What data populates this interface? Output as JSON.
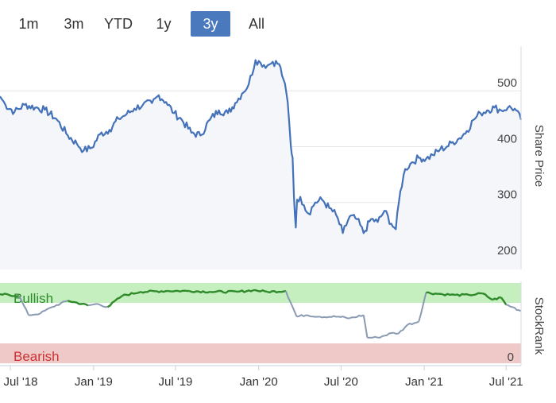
{
  "range_selector": {
    "buttons": [
      {
        "label": "1m",
        "active": false
      },
      {
        "label": "3m",
        "active": false
      },
      {
        "label": "YTD",
        "active": false
      },
      {
        "label": "1y",
        "active": false
      },
      {
        "label": "3y",
        "active": true
      },
      {
        "label": "All",
        "active": false
      }
    ]
  },
  "colors": {
    "price_line": "#4472b9",
    "price_fill": "#f5f6fa",
    "bullish_band": "#c6efc0",
    "bearish_band": "#efc8c8",
    "bullish_text": "#2e8b2e",
    "bearish_text": "#cc3333",
    "rank_green": "#2f8a2a",
    "rank_grey": "#8a9ab2",
    "grid": "#e6e6e6"
  },
  "chart_data": [
    {
      "type": "line",
      "ylabel": "Share Price",
      "ylim": [
        180,
        580
      ],
      "yticks": [
        200,
        300,
        400,
        500
      ],
      "x_range": [
        "2018-06-08",
        "2021-08-03"
      ],
      "xticks": [
        "Jul '18",
        "Jan '19",
        "Jul '19",
        "Jan '20",
        "Jul '20",
        "Jan '21",
        "Jul '21"
      ],
      "grid": true,
      "series": [
        {
          "x": [
            "2018-06-08",
            "2018-06-20",
            "2018-07-10",
            "2018-08-01",
            "2018-08-25",
            "2018-09-15",
            "2018-10-10",
            "2018-11-05",
            "2018-11-25",
            "2018-12-10",
            "2018-12-28",
            "2019-01-15",
            "2019-02-05",
            "2019-02-25",
            "2019-03-15",
            "2019-04-01",
            "2019-04-20",
            "2019-05-10",
            "2019-05-25",
            "2019-06-10",
            "2019-06-28",
            "2019-07-15",
            "2019-08-05",
            "2019-08-25",
            "2019-09-15",
            "2019-10-05",
            "2019-10-25",
            "2019-11-10",
            "2019-11-25",
            "2019-12-10",
            "2019-12-25",
            "2020-01-05",
            "2020-01-20",
            "2020-02-01",
            "2020-02-15",
            "2020-02-25",
            "2020-03-05",
            "2020-03-12",
            "2020-03-16",
            "2020-03-19",
            "2020-03-23",
            "2020-03-26",
            "2020-04-02",
            "2020-04-10",
            "2020-04-20",
            "2020-05-05",
            "2020-05-20",
            "2020-06-05",
            "2020-06-20",
            "2020-07-05",
            "2020-07-20",
            "2020-08-05",
            "2020-08-20",
            "2020-09-05",
            "2020-09-20",
            "2020-10-05",
            "2020-10-20",
            "2020-10-30",
            "2020-11-09",
            "2020-11-20",
            "2020-12-05",
            "2020-12-20",
            "2021-01-05",
            "2021-01-20",
            "2021-02-05",
            "2021-02-20",
            "2021-03-05",
            "2021-03-20",
            "2021-04-05",
            "2021-04-20",
            "2021-05-05",
            "2021-05-20",
            "2021-06-05",
            "2021-06-20",
            "2021-07-05",
            "2021-07-20",
            "2021-08-03"
          ],
          "y": [
            490,
            475,
            462,
            475,
            470,
            466,
            450,
            420,
            405,
            393,
            398,
            422,
            430,
            450,
            458,
            468,
            475,
            478,
            492,
            480,
            460,
            448,
            425,
            420,
            448,
            465,
            460,
            478,
            495,
            512,
            555,
            550,
            545,
            552,
            548,
            520,
            480,
            400,
            380,
            310,
            255,
            305,
            310,
            295,
            280,
            300,
            305,
            290,
            278,
            245,
            275,
            270,
            245,
            270,
            265,
            285,
            262,
            252,
            320,
            360,
            372,
            380,
            378,
            385,
            395,
            400,
            408,
            415,
            428,
            448,
            460,
            465,
            470,
            465,
            470,
            468,
            448
          ]
        }
      ]
    },
    {
      "type": "line",
      "ylabel": "StockRank",
      "ylim": [
        0,
        100
      ],
      "band_labels": [
        "Bullish",
        "Bearish"
      ],
      "zero_label": "0",
      "series": [
        {
          "x": [
            "2018-06-08",
            "2018-07-20",
            "2018-08-10",
            "2018-09-05",
            "2018-10-01",
            "2018-11-05",
            "2018-12-20",
            "2019-01-10",
            "2019-02-01",
            "2019-03-05",
            "2019-04-15",
            "2019-06-15",
            "2019-08-01",
            "2019-09-15",
            "2019-11-15",
            "2019-12-20",
            "2020-01-20",
            "2020-03-01",
            "2020-03-25",
            "2020-04-15",
            "2020-05-15",
            "2020-06-25",
            "2020-07-20",
            "2020-08-20",
            "2020-08-28",
            "2020-09-20",
            "2020-10-25",
            "2020-11-05",
            "2020-11-25",
            "2020-12-20",
            "2021-01-05",
            "2021-02-10",
            "2021-03-10",
            "2021-04-10",
            "2021-05-10",
            "2021-06-01",
            "2021-06-20",
            "2021-07-01",
            "2021-07-15",
            "2021-08-03"
          ],
          "y": [
            86,
            84,
            60,
            62,
            70,
            78,
            72,
            74,
            70,
            84,
            89,
            90,
            90,
            89,
            89,
            91,
            89,
            90,
            58,
            60,
            58,
            58,
            56,
            60,
            32,
            32,
            38,
            37,
            48,
            52,
            88,
            86,
            85,
            85,
            87,
            79,
            82,
            73,
            70,
            65
          ]
        }
      ]
    }
  ]
}
